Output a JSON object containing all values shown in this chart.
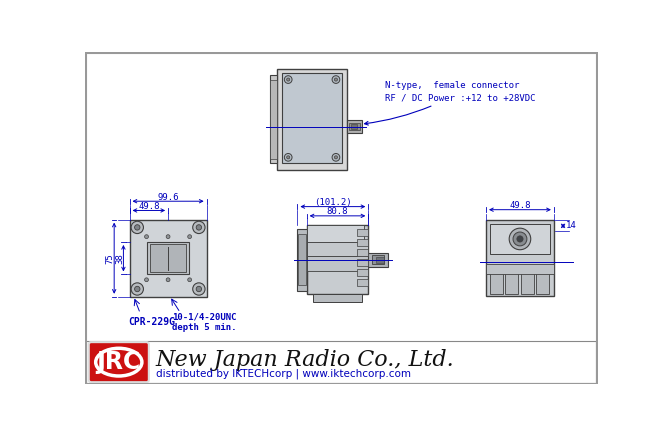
{
  "bg_color": "#ffffff",
  "drawing_bg": "#e8eef5",
  "line_color": "#404040",
  "blue_color": "#0000bb",
  "dim_color": "#0000bb",
  "jrc_red": "#cc1111",
  "company_name": "New Japan Radio Co., Ltd.",
  "distributed_by": "distributed by IKTECHcorp | www.iktechcorp.com",
  "annotation_connector": "N-type,  female connector\nRF / DC Power :+12 to +28VDC",
  "dim_99_6": "99.6",
  "dim_49_8_left": "49.8",
  "dim_101_2": "(101.2)",
  "dim_80_8": "80.8",
  "dim_49_8_right": "49.8",
  "dim_38": "38",
  "dim_75": "75",
  "dim_14": "14",
  "label_cpr": "CPR-229G",
  "label_screw": "10-1/4-20UNC\ndepth 5 min."
}
